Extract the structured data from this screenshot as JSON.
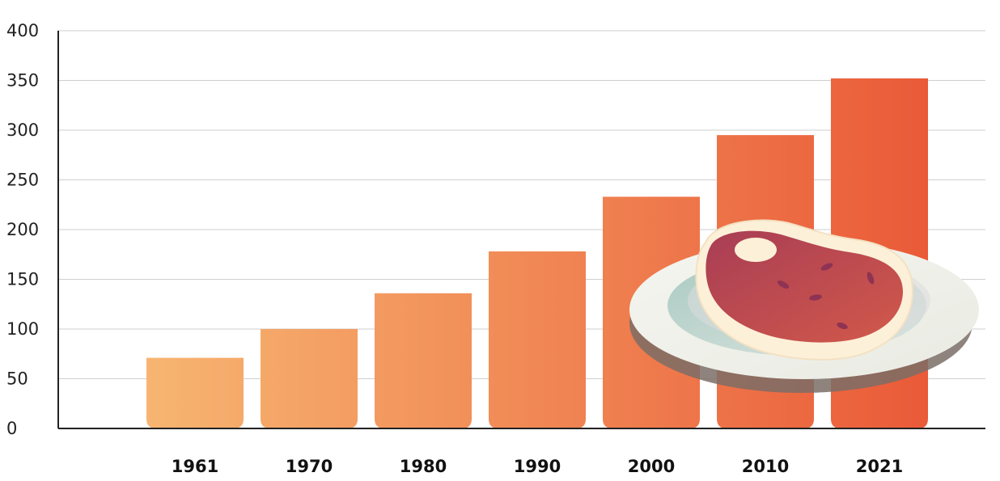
{
  "chart_data": {
    "type": "bar",
    "categories": [
      "1961",
      "1970",
      "1980",
      "1990",
      "2000",
      "2010",
      "2021"
    ],
    "values": [
      71,
      100,
      136,
      178,
      233,
      295,
      352
    ],
    "title": "",
    "xlabel": "",
    "ylabel": "",
    "ylim": [
      0,
      400
    ],
    "yticks": [
      0,
      50,
      100,
      150,
      200,
      250,
      300,
      350,
      400
    ],
    "grid": true,
    "legend": "none",
    "bar_gradient": [
      "#f7b571",
      "#ea5a38"
    ],
    "illustration": "steak-on-plate-icon"
  }
}
